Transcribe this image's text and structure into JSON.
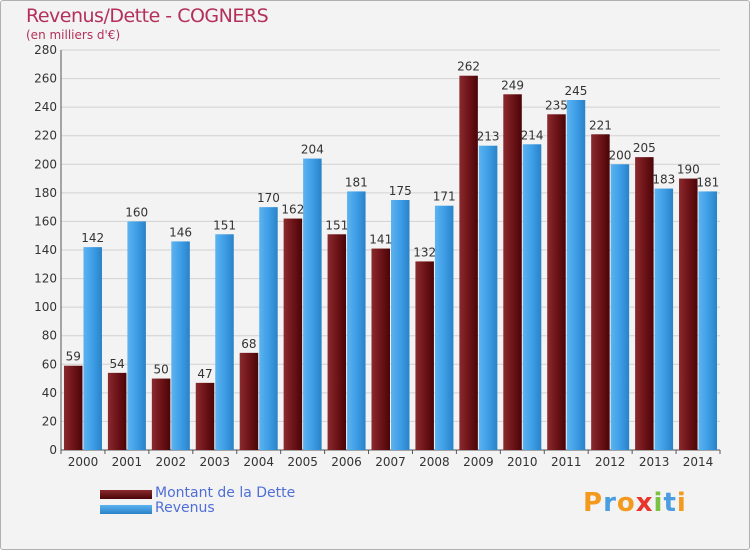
{
  "title": "Revenus/Dette - COGNERS",
  "subtitle": "(en milliers d'€)",
  "colors": {
    "dette": "#6e1418",
    "revenus": "#3e9ee6",
    "title": "#b4305a",
    "legend_text": "#4f6fd6"
  },
  "chart_data": {
    "type": "bar",
    "categories": [
      "2000",
      "2001",
      "2002",
      "2003",
      "2004",
      "2005",
      "2006",
      "2007",
      "2008",
      "2009",
      "2010",
      "2011",
      "2012",
      "2013",
      "2014"
    ],
    "series": [
      {
        "name": "Montant de la Dette",
        "values": [
          59,
          54,
          50,
          47,
          68,
          162,
          151,
          141,
          132,
          262,
          249,
          235,
          221,
          205,
          190
        ]
      },
      {
        "name": "Revenus",
        "values": [
          142,
          160,
          146,
          151,
          170,
          204,
          181,
          175,
          171,
          213,
          214,
          245,
          200,
          183,
          181
        ]
      }
    ],
    "ylim": [
      0,
      280
    ],
    "yticks": [
      0,
      20,
      40,
      60,
      80,
      100,
      120,
      140,
      160,
      180,
      200,
      220,
      240,
      260,
      280
    ],
    "grid": true,
    "legend": "bottom-left"
  },
  "legend": {
    "items": [
      "Montant de la Dette",
      "Revenus"
    ]
  },
  "logo": {
    "text": "Proxiti"
  }
}
